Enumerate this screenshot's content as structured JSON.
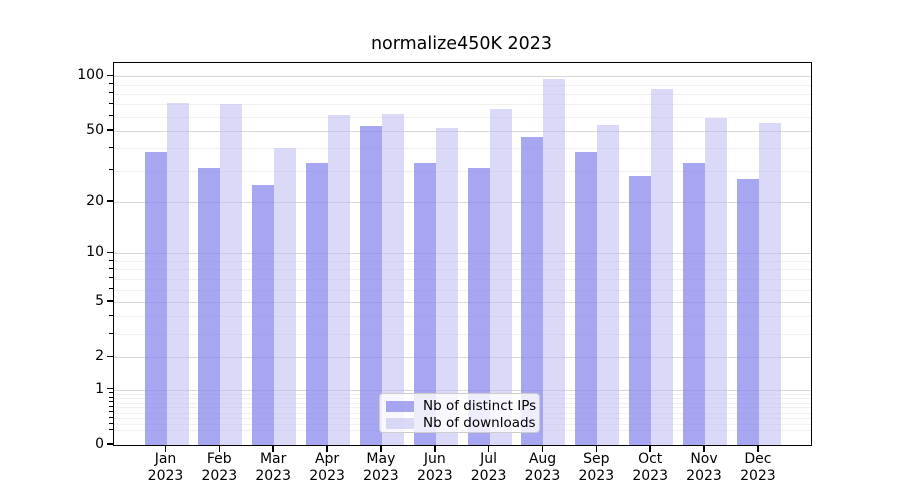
{
  "title": "normalize450K 2023",
  "colors": {
    "ips_bar": "rgba(132,132,235,0.72)",
    "downloads_bar": "rgba(188,188,242,0.55)",
    "grid_major": "#d8d8d8",
    "grid_minor": "#f0f0f0",
    "axis": "#000000"
  },
  "legend": {
    "items": [
      {
        "label": "Nb of distinct IPs",
        "series": "ips"
      },
      {
        "label": "Nb of downloads",
        "series": "downloads"
      }
    ]
  },
  "chart_data": {
    "type": "bar",
    "title": "normalize450K 2023",
    "yscale": "log1p",
    "grid": true,
    "legend_position": "lower center",
    "categories": [
      "Jan",
      "Feb",
      "Mar",
      "Apr",
      "May",
      "Jun",
      "Jul",
      "Aug",
      "Sep",
      "Oct",
      "Nov",
      "Dec"
    ],
    "category_year": "2023",
    "yticks": [
      100,
      50,
      20,
      10,
      5,
      2,
      1,
      0
    ],
    "minor_yticks": [
      0.2,
      0.3,
      0.4,
      0.5,
      0.6,
      0.7,
      0.8,
      0.9,
      3,
      4,
      6,
      7,
      8,
      9,
      30,
      40,
      60,
      70,
      80,
      90
    ],
    "ylim": [
      0,
      110
    ],
    "series": [
      {
        "name": "Nb of distinct IPs",
        "key": "ips",
        "values": [
          38,
          31,
          25,
          33,
          53,
          33,
          31,
          46,
          38,
          28,
          33,
          27
        ]
      },
      {
        "name": "Nb of downloads",
        "key": "downloads",
        "values": [
          71,
          70,
          40,
          61,
          62,
          52,
          66,
          97,
          54,
          85,
          59,
          55
        ]
      }
    ]
  }
}
